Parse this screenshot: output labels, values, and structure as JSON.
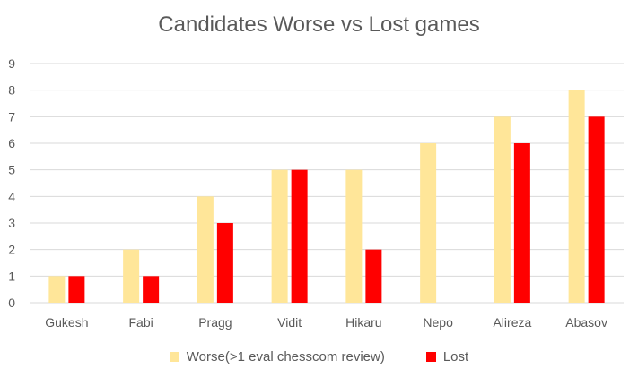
{
  "chart_data": {
    "type": "bar",
    "title": "Candidates Worse vs Lost games",
    "categories": [
      "Gukesh",
      "Fabi",
      "Pragg",
      "Vidit",
      "Hikaru",
      "Nepo",
      "Alireza",
      "Abasov"
    ],
    "series": [
      {
        "name": "Worse(>1 eval chesscom review)",
        "values": [
          1,
          2,
          4,
          5,
          5,
          6,
          7,
          8
        ],
        "color": "#FFE699"
      },
      {
        "name": "Lost",
        "values": [
          1,
          1,
          3,
          5,
          2,
          0,
          6,
          7
        ],
        "color": "#FF0000"
      }
    ],
    "y_ticks": [
      "0",
      "1",
      "2",
      "3",
      "4",
      "5",
      "6",
      "7",
      "8",
      "9"
    ],
    "ylim": [
      0,
      9
    ],
    "grid": true,
    "legend_position": "bottom"
  }
}
